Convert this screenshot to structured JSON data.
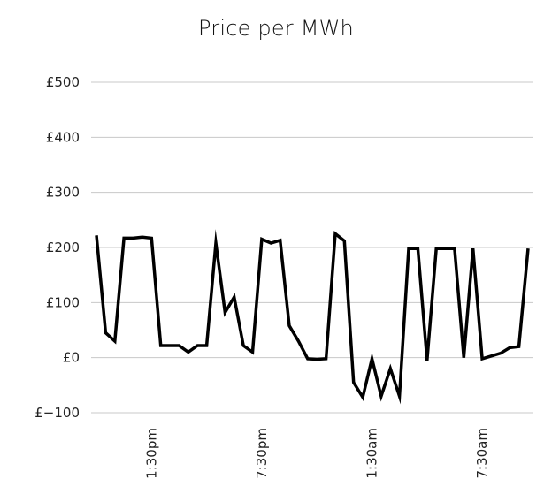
{
  "chart_data": {
    "type": "line",
    "title": "Price per MWh",
    "xlabel": "",
    "ylabel": "",
    "ylim": [
      -100,
      500
    ],
    "yticks": [
      -100,
      0,
      100,
      200,
      300,
      400,
      500
    ],
    "ytick_labels": [
      "£−100",
      "£0",
      "£100",
      "£200",
      "£300",
      "£400",
      "£500"
    ],
    "x_tick_labels": [
      {
        "label": "1:30pm",
        "x": 6
      },
      {
        "label": "7:30pm",
        "x": 18
      },
      {
        "label": "1:30am",
        "x": 30
      },
      {
        "label": "7:30am",
        "x": 42
      }
    ],
    "xlim": [
      0,
      48
    ],
    "grid": true,
    "series": [
      {
        "values": [
          222,
          45,
          30,
          217,
          217,
          219,
          217,
          22,
          22,
          22,
          10,
          22,
          22,
          208,
          82,
          110,
          22,
          10,
          215,
          208,
          213,
          58,
          30,
          -2,
          -3,
          -2,
          225,
          212,
          -45,
          -72,
          -2,
          -70,
          -20,
          -70,
          198,
          198,
          -5,
          198,
          198,
          198,
          0,
          198,
          -2,
          3,
          8,
          18,
          20,
          198
        ]
      }
    ]
  },
  "colors": {
    "line": "#000000",
    "grid": "#c8c8c8",
    "text": "#222222"
  }
}
